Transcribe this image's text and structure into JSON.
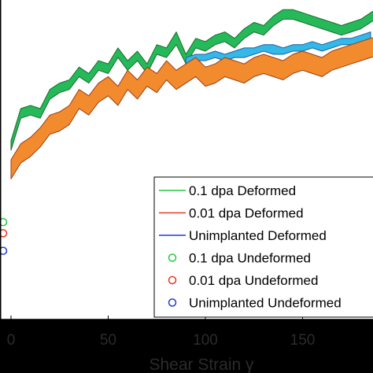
{
  "chart_data": {
    "type": "area",
    "title": "",
    "xlabel": "Shear Strain γ",
    "ylabel": "",
    "xlim": [
      0,
      190
    ],
    "ylim": [
      0,
      1
    ],
    "x_ticks": [
      "0",
      "50",
      "100",
      "150"
    ],
    "grid": false,
    "legend_position": "bottom-right",
    "legend": [
      {
        "label": "0.1 dpa Deformed",
        "style": "line",
        "color": "#22c940"
      },
      {
        "label": "0.01 dpa Deformed",
        "style": "line",
        "color": "#e8391e"
      },
      {
        "label": "Unimplanted Deformed",
        "style": "line",
        "color": "#1f3bd6"
      },
      {
        "label": "0.1 dpa Undeformed",
        "style": "marker",
        "color": "#22c940"
      },
      {
        "label": "0.01 dpa Undeformed",
        "style": "marker",
        "color": "#e8391e"
      },
      {
        "label": "Unimplanted Undeformed",
        "style": "marker",
        "color": "#1f3bd6"
      }
    ],
    "series": [
      {
        "fill": "#25b95a",
        "edge": "#1a6b2a",
        "x": [
          0,
          5,
          10,
          15,
          20,
          25,
          30,
          35,
          40,
          45,
          50,
          55,
          60,
          65,
          70,
          75,
          80,
          85,
          90,
          95,
          100,
          105,
          110,
          115,
          120,
          125,
          130,
          135,
          140,
          145,
          150,
          155,
          160,
          165,
          170,
          175,
          180,
          185,
          190
        ],
        "upper": [
          0.56,
          0.66,
          0.67,
          0.66,
          0.72,
          0.74,
          0.75,
          0.79,
          0.77,
          0.81,
          0.8,
          0.85,
          0.81,
          0.84,
          0.8,
          0.86,
          0.85,
          0.9,
          0.83,
          0.88,
          0.87,
          0.89,
          0.9,
          0.88,
          0.91,
          0.93,
          0.92,
          0.95,
          0.97,
          0.97,
          0.96,
          0.95,
          0.94,
          0.93,
          0.92,
          0.93,
          0.94,
          0.96,
          0.98
        ],
        "lower": [
          0.53,
          0.63,
          0.64,
          0.63,
          0.69,
          0.71,
          0.72,
          0.76,
          0.74,
          0.78,
          0.77,
          0.82,
          0.78,
          0.81,
          0.77,
          0.83,
          0.82,
          0.86,
          0.8,
          0.85,
          0.84,
          0.86,
          0.87,
          0.85,
          0.88,
          0.9,
          0.89,
          0.92,
          0.94,
          0.94,
          0.93,
          0.92,
          0.91,
          0.9,
          0.89,
          0.9,
          0.91,
          0.93,
          0.95
        ]
      },
      {
        "fill": "#33b8e8",
        "edge": "#1f5fa0",
        "x": [
          90,
          95,
          100,
          105,
          110,
          115,
          120,
          125,
          130,
          135,
          140,
          145,
          150,
          155,
          160,
          165,
          170,
          175,
          180,
          185
        ],
        "upper": [
          0.82,
          0.83,
          0.83,
          0.84,
          0.83,
          0.84,
          0.85,
          0.85,
          0.86,
          0.86,
          0.85,
          0.86,
          0.86,
          0.87,
          0.86,
          0.87,
          0.88,
          0.88,
          0.89,
          0.9
        ],
        "lower": [
          0.8,
          0.81,
          0.81,
          0.82,
          0.81,
          0.82,
          0.82,
          0.83,
          0.84,
          0.83,
          0.83,
          0.84,
          0.84,
          0.85,
          0.84,
          0.85,
          0.86,
          0.86,
          0.87,
          0.88
        ]
      },
      {
        "fill": "#f28a2e",
        "edge": "#9c3f12",
        "x": [
          0,
          5,
          10,
          15,
          20,
          25,
          30,
          35,
          40,
          45,
          50,
          55,
          60,
          65,
          70,
          75,
          80,
          85,
          90,
          95,
          100,
          105,
          110,
          115,
          120,
          125,
          130,
          135,
          140,
          145,
          150,
          155,
          160,
          165,
          170,
          175,
          180,
          185,
          190
        ],
        "upper": [
          0.5,
          0.55,
          0.57,
          0.6,
          0.64,
          0.65,
          0.67,
          0.72,
          0.7,
          0.74,
          0.76,
          0.73,
          0.78,
          0.75,
          0.79,
          0.77,
          0.81,
          0.78,
          0.8,
          0.82,
          0.79,
          0.8,
          0.82,
          0.81,
          0.8,
          0.82,
          0.83,
          0.82,
          0.81,
          0.83,
          0.84,
          0.83,
          0.82,
          0.84,
          0.85,
          0.86,
          0.87,
          0.88,
          0.89
        ],
        "lower": [
          0.44,
          0.49,
          0.51,
          0.54,
          0.58,
          0.59,
          0.61,
          0.66,
          0.64,
          0.68,
          0.7,
          0.67,
          0.72,
          0.69,
          0.73,
          0.71,
          0.75,
          0.72,
          0.74,
          0.76,
          0.73,
          0.74,
          0.76,
          0.75,
          0.74,
          0.76,
          0.77,
          0.76,
          0.75,
          0.77,
          0.78,
          0.77,
          0.76,
          0.78,
          0.79,
          0.8,
          0.81,
          0.82,
          0.83
        ]
      }
    ],
    "undeformed_markers": [
      {
        "color": "#22c940",
        "y": 0.305
      },
      {
        "color": "#e8391e",
        "y": 0.27
      },
      {
        "color": "#1f3bd6",
        "y": 0.215
      }
    ]
  }
}
